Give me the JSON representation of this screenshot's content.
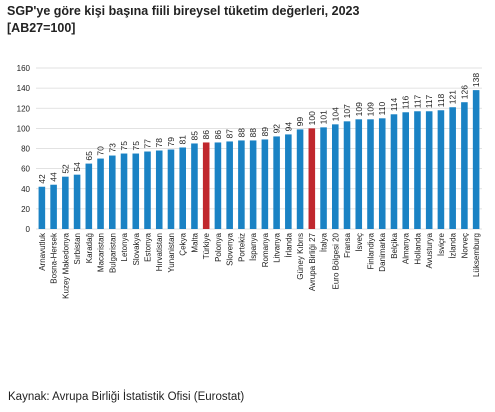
{
  "title": "SGP'ye göre kişi başına fiili bireysel tüketim değerleri, 2023",
  "subtitle": "[AB27=100]",
  "source": "Kaynak: Avrupa Birliği İstatistik Ofisi (Eurostat)",
  "colors": {
    "bar": "#1a82c4",
    "highlight": "#c0272d",
    "grid": "#d9d9d9"
  },
  "chart_data": {
    "type": "bar",
    "title": "SGP'ye göre kişi başına fiili bireysel tüketim değerleri, 2023",
    "subtitle": "[AB27=100]",
    "xlabel": "",
    "ylabel": "",
    "ylim": [
      0,
      160
    ],
    "yticks": [
      0,
      20,
      40,
      60,
      80,
      100,
      120,
      140,
      160
    ],
    "grid": true,
    "legend": "none",
    "highlighted": [
      "Türkiye",
      "Avrupa Birliği 27"
    ],
    "categories": [
      "Arnavutluk",
      "Bosna-Hersek",
      "Kuzey Makedonya",
      "Sırbistan",
      "Karadağ",
      "Macaristan",
      "Bulgaristan",
      "Letonya",
      "Slovakya",
      "Estonya",
      "Hırvatistan",
      "Yunanistan",
      "Çekya",
      "Malta",
      "Türkiye",
      "Polonya",
      "Slovenya",
      "Portekiz",
      "İspanya",
      "Romanya",
      "Litvanya",
      "İrlanda",
      "Güney Kıbrıs",
      "Avrupa Birliği 27",
      "İtalya",
      "Euro Bölgesi 20",
      "Fransa",
      "İsveç",
      "Finlandiya",
      "Danimarka",
      "Belçika",
      "Almanya",
      "Hollanda",
      "Avusturya",
      "İsviçre",
      "İzlanda",
      "Norveç",
      "Lüksemburg"
    ],
    "values": [
      42,
      44,
      52,
      54,
      65,
      70,
      73,
      75,
      75,
      77,
      78,
      79,
      81,
      85,
      86,
      86,
      87,
      88,
      88,
      89,
      92,
      94,
      99,
      100,
      101,
      104,
      107,
      109,
      109,
      110,
      114,
      116,
      117,
      117,
      118,
      121,
      126,
      138
    ]
  }
}
